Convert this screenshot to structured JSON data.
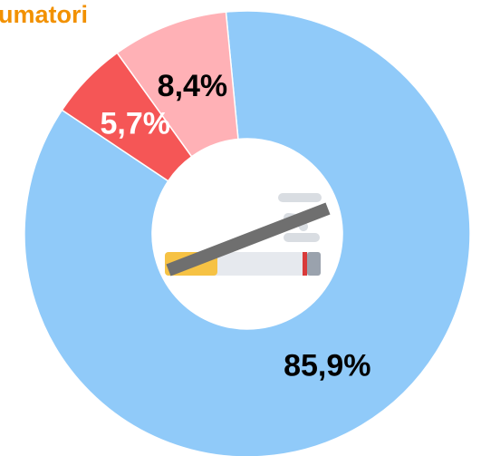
{
  "chart_data": {
    "type": "donut",
    "title": "umatori",
    "categories": [
      null,
      null,
      null
    ],
    "values": [
      85.9,
      5.7,
      8.4
    ],
    "value_labels": [
      "85,9%",
      "5,7%",
      "8,4%"
    ],
    "colors": [
      "#90caf9",
      "#f55656",
      "#ffb1b6"
    ],
    "label_colors": [
      "#000000",
      "#ffffff",
      "#000000"
    ]
  }
}
